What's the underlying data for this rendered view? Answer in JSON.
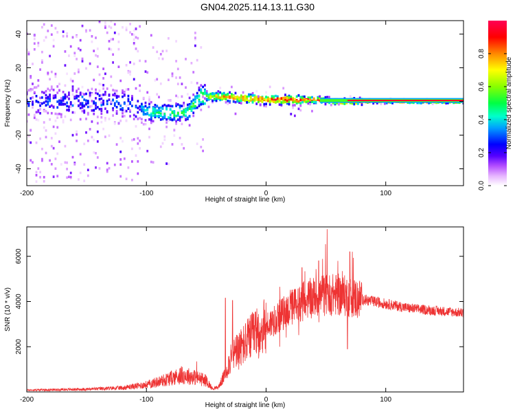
{
  "title": "GN04.2025.114.13.11.G30",
  "colors": {
    "snr_line": "#ee3333",
    "axis": "#000000"
  },
  "chart_data": [
    {
      "type": "heatmap",
      "xlabel": "Height of straight line (km)",
      "ylabel": "Frequency (Hz)",
      "xlim": [
        -200,
        165
      ],
      "ylim": [
        -50,
        48
      ],
      "xticks": [
        "-200",
        "-100",
        "0",
        "100"
      ],
      "yticks": [
        "40",
        "20",
        "0",
        "-20",
        "-40"
      ],
      "colorbar": {
        "label": "Normalized spectral amplitude",
        "range": [
          0,
          1
        ],
        "ticks": [
          "0.0",
          "0.2",
          "0.4",
          "0.6",
          "0.8"
        ],
        "colormap": [
          "#ffffff",
          "#cc66ff",
          "#5500ff",
          "#0000ff",
          "#00ccff",
          "#00ff66",
          "#88ff00",
          "#ffff00",
          "#ff8800",
          "#ff0000",
          "#ff0066"
        ]
      },
      "ridge": [
        {
          "x": -200,
          "y": 0,
          "amp": 0.3
        },
        {
          "x": -150,
          "y": 0,
          "amp": 0.3
        },
        {
          "x": -110,
          "y": -2,
          "amp": 0.35
        },
        {
          "x": -100,
          "y": -6,
          "amp": 0.45
        },
        {
          "x": -80,
          "y": -7,
          "amp": 0.5
        },
        {
          "x": -65,
          "y": -6,
          "amp": 0.5
        },
        {
          "x": -55,
          "y": 3,
          "amp": 0.55
        },
        {
          "x": -40,
          "y": 3,
          "amp": 0.8
        },
        {
          "x": -20,
          "y": 2,
          "amp": 0.85
        },
        {
          "x": 0,
          "y": 1,
          "amp": 0.9
        },
        {
          "x": 20,
          "y": 1,
          "amp": 0.9
        },
        {
          "x": 40,
          "y": 1,
          "amp": 0.92
        },
        {
          "x": 60,
          "y": 0,
          "amp": 0.95
        },
        {
          "x": 100,
          "y": 0,
          "amp": 0.97
        },
        {
          "x": 165,
          "y": 0,
          "amp": 0.97
        }
      ]
    },
    {
      "type": "line",
      "xlabel": "Height of straight line (km)",
      "ylabel": "SNR (10 * v/v)",
      "xlim": [
        -200,
        165
      ],
      "ylim": [
        0,
        7300
      ],
      "xticks": [
        "-200",
        "-100",
        "0",
        "100"
      ],
      "yticks": [
        "6000",
        "4000",
        "2000"
      ],
      "series": [
        {
          "x": [
            -200,
            -150,
            -120,
            -100,
            -90,
            -80,
            -70,
            -60,
            -50,
            -45,
            -40,
            -35,
            -30,
            -25,
            -20,
            -15,
            -10,
            -5,
            0,
            10,
            20,
            30,
            40,
            50,
            60,
            70,
            80,
            90,
            100,
            120,
            140,
            165
          ],
          "y": [
            80,
            120,
            180,
            320,
            450,
            600,
            750,
            650,
            500,
            150,
            200,
            700,
            1400,
            1800,
            2000,
            2300,
            2500,
            2700,
            2900,
            3300,
            3700,
            4000,
            4200,
            4300,
            4300,
            4200,
            4100,
            4000,
            3900,
            3700,
            3600,
            3500
          ],
          "spikes": [
            {
              "x": -58,
              "y": 1350
            },
            {
              "x": -34,
              "y": 4150
            },
            {
              "x": -28,
              "y": 4050
            },
            {
              "x": 30,
              "y": 5500
            },
            {
              "x": 44,
              "y": 5800
            },
            {
              "x": 51,
              "y": 7200
            },
            {
              "x": 60,
              "y": 5800
            },
            {
              "x": 70,
              "y": 6200
            },
            {
              "x": 68,
              "y": 1900
            }
          ]
        }
      ]
    }
  ]
}
